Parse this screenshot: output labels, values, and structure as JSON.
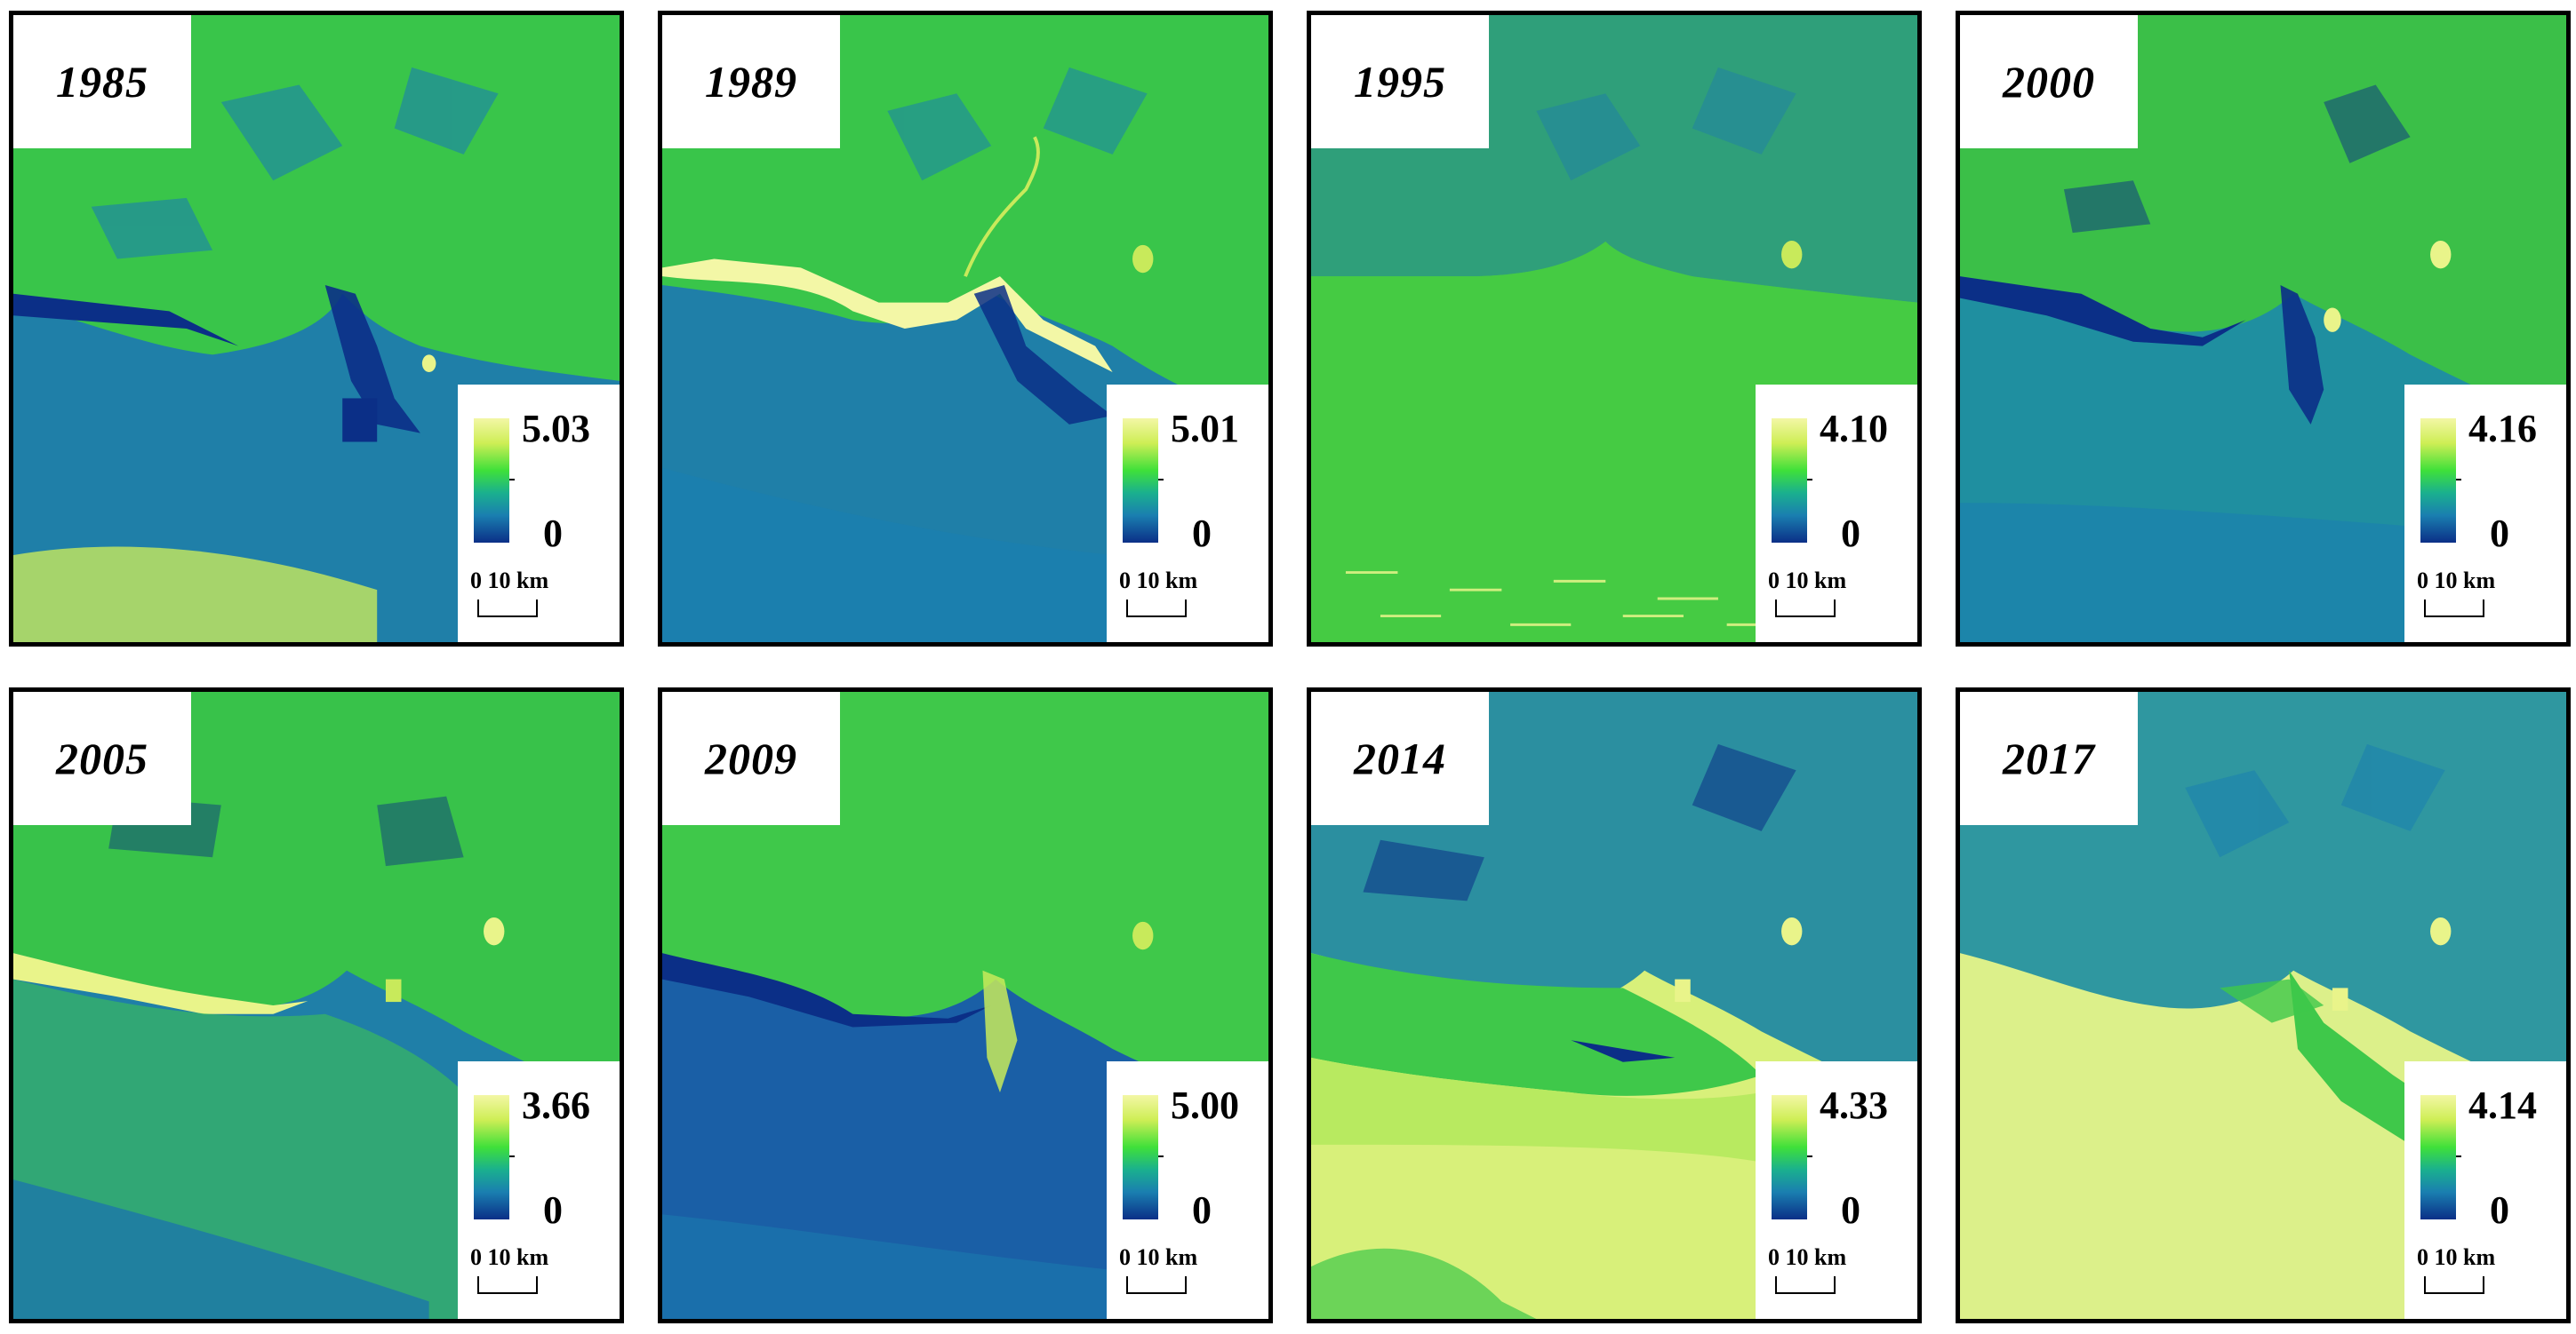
{
  "scale_label": "0   10 km",
  "min_label": "0",
  "panels": [
    {
      "year": "1985",
      "max": "5.03"
    },
    {
      "year": "1989",
      "max": "5.01"
    },
    {
      "year": "1995",
      "max": "4.10"
    },
    {
      "year": "2000",
      "max": "4.16"
    },
    {
      "year": "2005",
      "max": "3.66"
    },
    {
      "year": "2009",
      "max": "5.00"
    },
    {
      "year": "2014",
      "max": "4.33"
    },
    {
      "year": "2017",
      "max": "4.14"
    }
  ],
  "colormap": [
    "#0b2f87",
    "#1a7fb0",
    "#1ab08e",
    "#3fe03a",
    "#ceee55",
    "#f3f7a6"
  ]
}
